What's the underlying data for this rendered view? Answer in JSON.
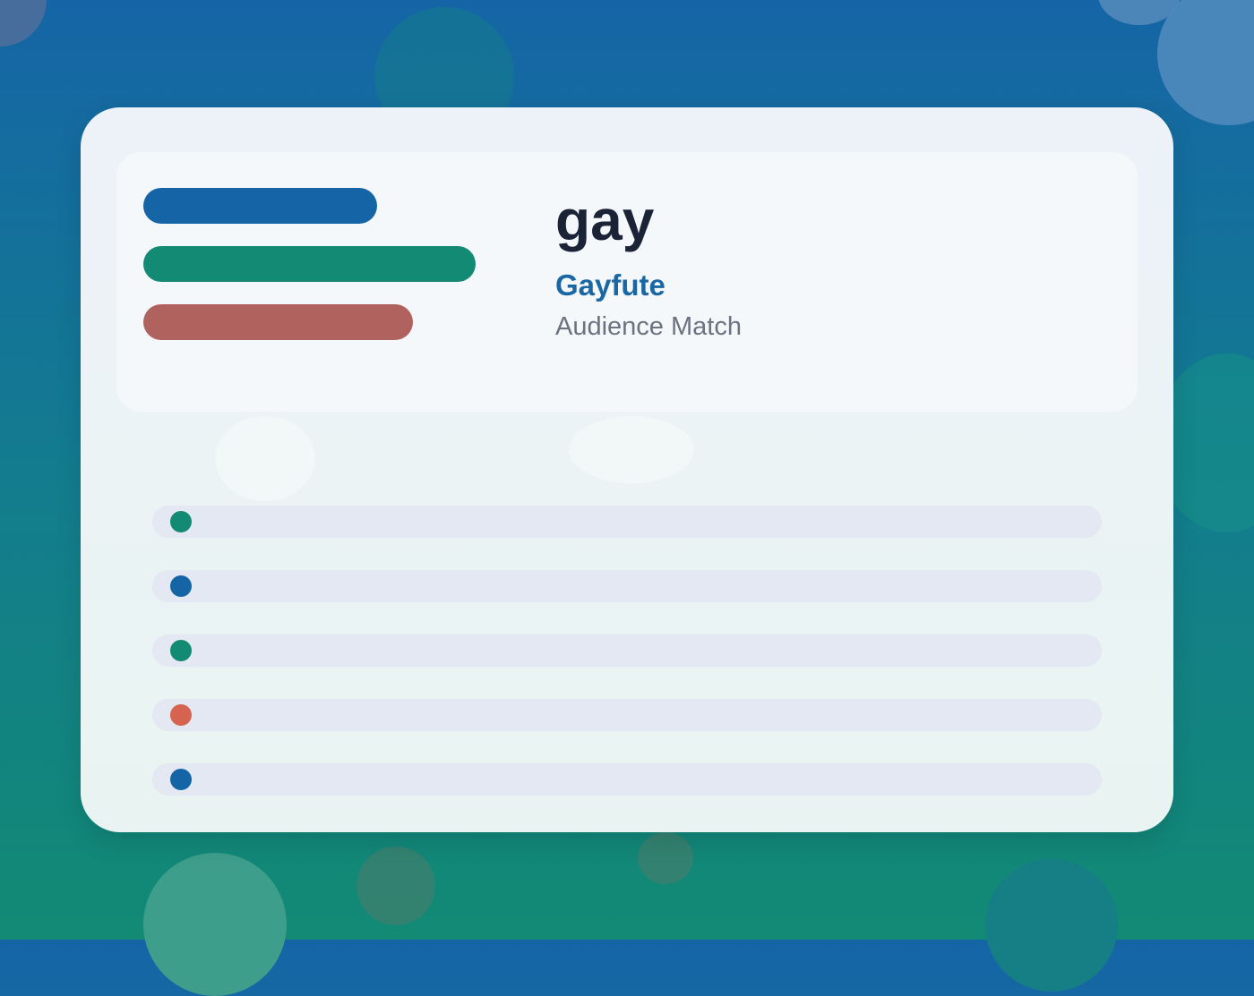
{
  "hero": {
    "title": "gay",
    "subtitle": "Gayfute",
    "caption": "Audience Match"
  },
  "colors": {
    "blue": "#1565a6",
    "green": "#128a74",
    "red": "#b0625e",
    "coral": "#d5634f"
  },
  "rows": [
    {
      "dot_color": "#128a74"
    },
    {
      "dot_color": "#1565a6"
    },
    {
      "dot_color": "#128a74"
    },
    {
      "dot_color": "#d5634f"
    },
    {
      "dot_color": "#1565a6"
    }
  ]
}
